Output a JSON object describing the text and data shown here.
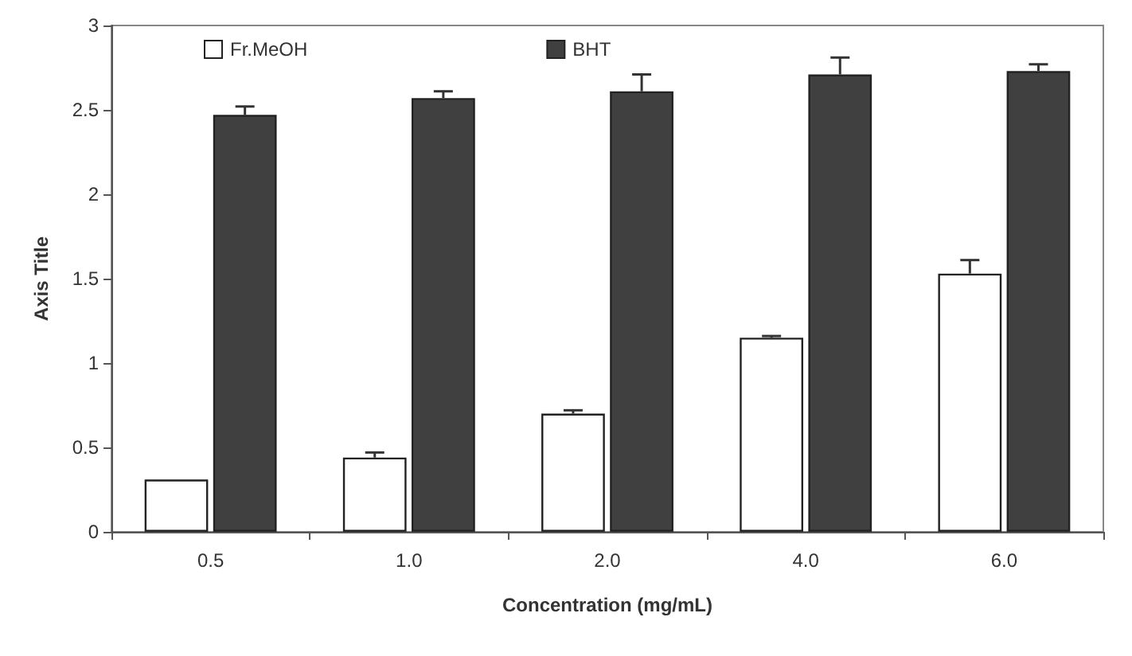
{
  "chart_data": {
    "type": "bar",
    "xlabel": "Concentration (mg/mL)",
    "ylabel": "Axis Title",
    "categories": [
      "0.5",
      "1.0",
      "2.0",
      "4.0",
      "6.0"
    ],
    "series": [
      {
        "name": "Fr.MeOH",
        "color": "#ffffff",
        "values": [
          0.31,
          0.44,
          0.7,
          1.15,
          1.53
        ],
        "errors": [
          null,
          0.03,
          0.02,
          0.01,
          0.08
        ]
      },
      {
        "name": "BHT",
        "color": "#404040",
        "values": [
          2.47,
          2.57,
          2.61,
          2.71,
          2.73
        ],
        "errors": [
          0.05,
          0.04,
          0.1,
          0.1,
          0.04
        ]
      }
    ],
    "ylim": [
      0,
      3
    ],
    "yticks": [
      0,
      0.5,
      1,
      1.5,
      2,
      2.5,
      3
    ],
    "grid": false,
    "legend": "top left"
  }
}
